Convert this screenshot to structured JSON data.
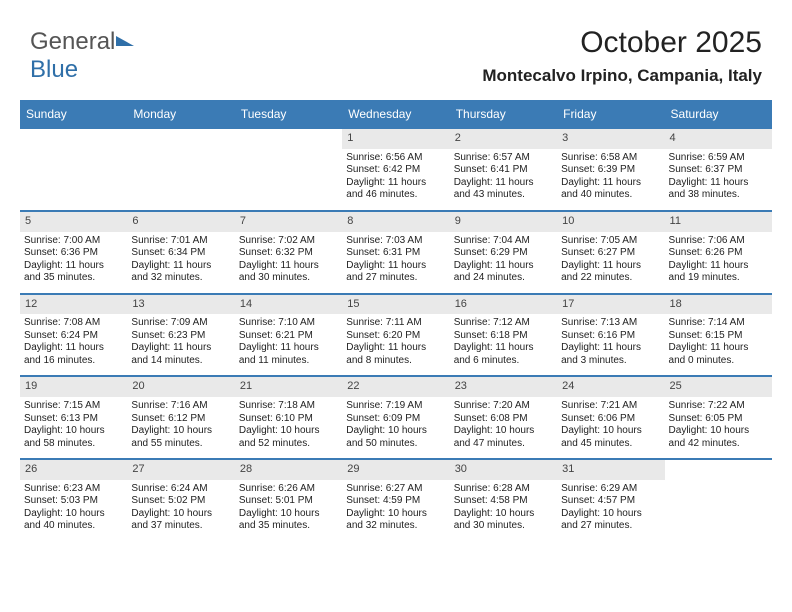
{
  "logo": {
    "word1": "General",
    "word2": "Blue"
  },
  "title": "October 2025",
  "subtitle": "Montecalvo Irpino, Campania, Italy",
  "colors": {
    "header_bg": "#3b7bb5",
    "header_text": "#ffffff",
    "daynum_bg": "#e9e9e9",
    "body_text": "#222222",
    "background": "#ffffff",
    "logo_gray": "#555555",
    "logo_blue": "#2f6fa8"
  },
  "day_headers": [
    "Sunday",
    "Monday",
    "Tuesday",
    "Wednesday",
    "Thursday",
    "Friday",
    "Saturday"
  ],
  "weeks": [
    [
      {
        "n": "",
        "empty": true
      },
      {
        "n": "",
        "empty": true
      },
      {
        "n": "",
        "empty": true
      },
      {
        "n": "1",
        "sr": "Sunrise: 6:56 AM",
        "ss": "Sunset: 6:42 PM",
        "d1": "Daylight: 11 hours",
        "d2": "and 46 minutes."
      },
      {
        "n": "2",
        "sr": "Sunrise: 6:57 AM",
        "ss": "Sunset: 6:41 PM",
        "d1": "Daylight: 11 hours",
        "d2": "and 43 minutes."
      },
      {
        "n": "3",
        "sr": "Sunrise: 6:58 AM",
        "ss": "Sunset: 6:39 PM",
        "d1": "Daylight: 11 hours",
        "d2": "and 40 minutes."
      },
      {
        "n": "4",
        "sr": "Sunrise: 6:59 AM",
        "ss": "Sunset: 6:37 PM",
        "d1": "Daylight: 11 hours",
        "d2": "and 38 minutes."
      }
    ],
    [
      {
        "n": "5",
        "sr": "Sunrise: 7:00 AM",
        "ss": "Sunset: 6:36 PM",
        "d1": "Daylight: 11 hours",
        "d2": "and 35 minutes."
      },
      {
        "n": "6",
        "sr": "Sunrise: 7:01 AM",
        "ss": "Sunset: 6:34 PM",
        "d1": "Daylight: 11 hours",
        "d2": "and 32 minutes."
      },
      {
        "n": "7",
        "sr": "Sunrise: 7:02 AM",
        "ss": "Sunset: 6:32 PM",
        "d1": "Daylight: 11 hours",
        "d2": "and 30 minutes."
      },
      {
        "n": "8",
        "sr": "Sunrise: 7:03 AM",
        "ss": "Sunset: 6:31 PM",
        "d1": "Daylight: 11 hours",
        "d2": "and 27 minutes."
      },
      {
        "n": "9",
        "sr": "Sunrise: 7:04 AM",
        "ss": "Sunset: 6:29 PM",
        "d1": "Daylight: 11 hours",
        "d2": "and 24 minutes."
      },
      {
        "n": "10",
        "sr": "Sunrise: 7:05 AM",
        "ss": "Sunset: 6:27 PM",
        "d1": "Daylight: 11 hours",
        "d2": "and 22 minutes."
      },
      {
        "n": "11",
        "sr": "Sunrise: 7:06 AM",
        "ss": "Sunset: 6:26 PM",
        "d1": "Daylight: 11 hours",
        "d2": "and 19 minutes."
      }
    ],
    [
      {
        "n": "12",
        "sr": "Sunrise: 7:08 AM",
        "ss": "Sunset: 6:24 PM",
        "d1": "Daylight: 11 hours",
        "d2": "and 16 minutes."
      },
      {
        "n": "13",
        "sr": "Sunrise: 7:09 AM",
        "ss": "Sunset: 6:23 PM",
        "d1": "Daylight: 11 hours",
        "d2": "and 14 minutes."
      },
      {
        "n": "14",
        "sr": "Sunrise: 7:10 AM",
        "ss": "Sunset: 6:21 PM",
        "d1": "Daylight: 11 hours",
        "d2": "and 11 minutes."
      },
      {
        "n": "15",
        "sr": "Sunrise: 7:11 AM",
        "ss": "Sunset: 6:20 PM",
        "d1": "Daylight: 11 hours",
        "d2": "and 8 minutes."
      },
      {
        "n": "16",
        "sr": "Sunrise: 7:12 AM",
        "ss": "Sunset: 6:18 PM",
        "d1": "Daylight: 11 hours",
        "d2": "and 6 minutes."
      },
      {
        "n": "17",
        "sr": "Sunrise: 7:13 AM",
        "ss": "Sunset: 6:16 PM",
        "d1": "Daylight: 11 hours",
        "d2": "and 3 minutes."
      },
      {
        "n": "18",
        "sr": "Sunrise: 7:14 AM",
        "ss": "Sunset: 6:15 PM",
        "d1": "Daylight: 11 hours",
        "d2": "and 0 minutes."
      }
    ],
    [
      {
        "n": "19",
        "sr": "Sunrise: 7:15 AM",
        "ss": "Sunset: 6:13 PM",
        "d1": "Daylight: 10 hours",
        "d2": "and 58 minutes."
      },
      {
        "n": "20",
        "sr": "Sunrise: 7:16 AM",
        "ss": "Sunset: 6:12 PM",
        "d1": "Daylight: 10 hours",
        "d2": "and 55 minutes."
      },
      {
        "n": "21",
        "sr": "Sunrise: 7:18 AM",
        "ss": "Sunset: 6:10 PM",
        "d1": "Daylight: 10 hours",
        "d2": "and 52 minutes."
      },
      {
        "n": "22",
        "sr": "Sunrise: 7:19 AM",
        "ss": "Sunset: 6:09 PM",
        "d1": "Daylight: 10 hours",
        "d2": "and 50 minutes."
      },
      {
        "n": "23",
        "sr": "Sunrise: 7:20 AM",
        "ss": "Sunset: 6:08 PM",
        "d1": "Daylight: 10 hours",
        "d2": "and 47 minutes."
      },
      {
        "n": "24",
        "sr": "Sunrise: 7:21 AM",
        "ss": "Sunset: 6:06 PM",
        "d1": "Daylight: 10 hours",
        "d2": "and 45 minutes."
      },
      {
        "n": "25",
        "sr": "Sunrise: 7:22 AM",
        "ss": "Sunset: 6:05 PM",
        "d1": "Daylight: 10 hours",
        "d2": "and 42 minutes."
      }
    ],
    [
      {
        "n": "26",
        "sr": "Sunrise: 6:23 AM",
        "ss": "Sunset: 5:03 PM",
        "d1": "Daylight: 10 hours",
        "d2": "and 40 minutes."
      },
      {
        "n": "27",
        "sr": "Sunrise: 6:24 AM",
        "ss": "Sunset: 5:02 PM",
        "d1": "Daylight: 10 hours",
        "d2": "and 37 minutes."
      },
      {
        "n": "28",
        "sr": "Sunrise: 6:26 AM",
        "ss": "Sunset: 5:01 PM",
        "d1": "Daylight: 10 hours",
        "d2": "and 35 minutes."
      },
      {
        "n": "29",
        "sr": "Sunrise: 6:27 AM",
        "ss": "Sunset: 4:59 PM",
        "d1": "Daylight: 10 hours",
        "d2": "and 32 minutes."
      },
      {
        "n": "30",
        "sr": "Sunrise: 6:28 AM",
        "ss": "Sunset: 4:58 PM",
        "d1": "Daylight: 10 hours",
        "d2": "and 30 minutes."
      },
      {
        "n": "31",
        "sr": "Sunrise: 6:29 AM",
        "ss": "Sunset: 4:57 PM",
        "d1": "Daylight: 10 hours",
        "d2": "and 27 minutes."
      },
      {
        "n": "",
        "empty": true
      }
    ]
  ]
}
